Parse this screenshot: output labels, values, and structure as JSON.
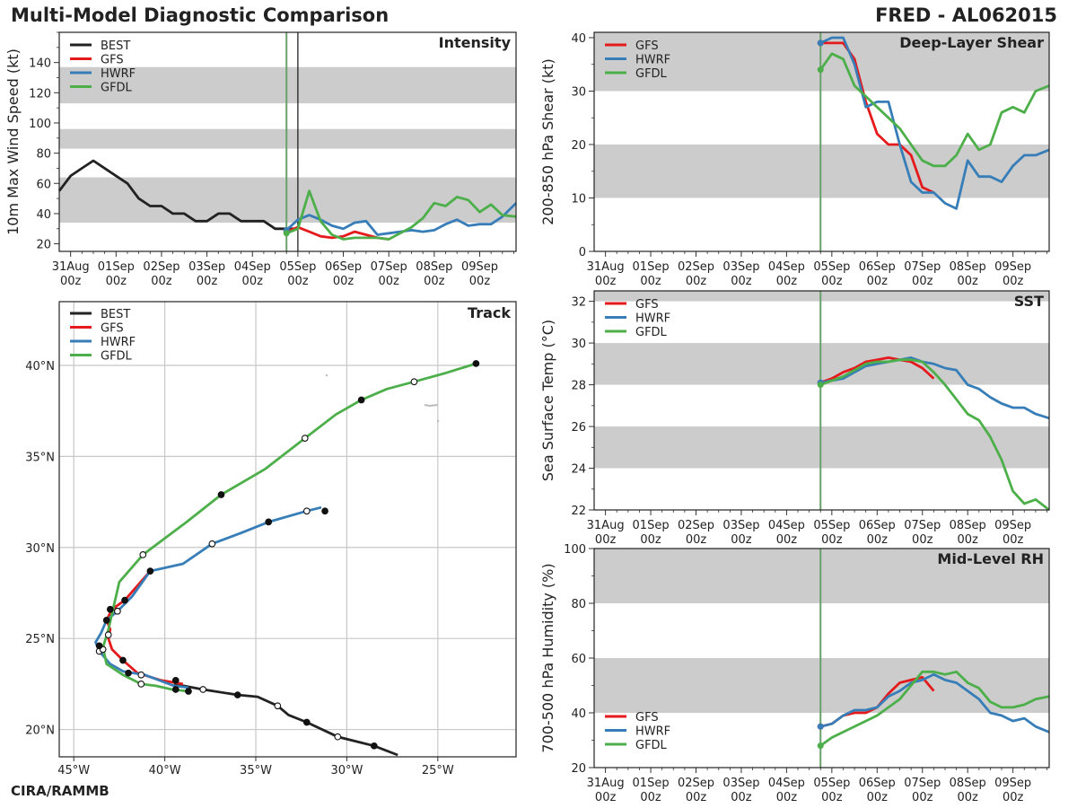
{
  "header": {
    "title": "Multi-Model Diagnostic Comparison",
    "storm": "FRED - AL062015",
    "credit": "CIRA/RAMMB"
  },
  "colors": {
    "BEST": "#222222",
    "GFS": "#e41a1c",
    "HWRF": "#377eb8",
    "GFDL": "#4daf4a",
    "band": "#cccccc",
    "grid": "#c8c8c8",
    "init": "#6aa06a"
  },
  "time_axis": {
    "tick_days": [
      0,
      1,
      2,
      3,
      4,
      5,
      6,
      7,
      8,
      9
    ],
    "tick_labels_top": [
      "31Aug",
      "01Sep",
      "02Sep",
      "03Sep",
      "04Sep",
      "05Sep",
      "06Sep",
      "07Sep",
      "08Sep",
      "09Sep"
    ],
    "tick_labels_bottom": [
      "00z",
      "00z",
      "00z",
      "00z",
      "00z",
      "00z",
      "00z",
      "00z",
      "00z",
      "00z"
    ],
    "init_day": 4.75,
    "now_day": 5.0,
    "xlim": [
      -0.25,
      9.8
    ]
  },
  "chart_data": [
    {
      "id": "intensity",
      "type": "line",
      "title": "Intensity",
      "xlabel": "",
      "ylabel": "10m Max Wind Speed (kt)",
      "ylim": [
        15,
        160
      ],
      "yticks": [
        20,
        40,
        60,
        80,
        100,
        120,
        140
      ],
      "bands": [
        [
          34,
          64
        ],
        [
          83,
          96
        ],
        [
          113,
          137
        ]
      ],
      "legend": [
        "BEST",
        "GFS",
        "HWRF",
        "GFDL"
      ],
      "series": [
        {
          "name": "BEST",
          "x": [
            -0.25,
            0.0,
            0.25,
            0.5,
            0.75,
            1.0,
            1.25,
            1.5,
            1.75,
            2.0,
            2.25,
            2.5,
            2.75,
            3.0,
            3.25,
            3.5,
            3.75,
            4.0,
            4.25,
            4.5,
            4.75,
            5.0
          ],
          "y": [
            55,
            65,
            70,
            75,
            70,
            65,
            60,
            50,
            45,
            45,
            40,
            40,
            35,
            35,
            40,
            40,
            35,
            35,
            35,
            30,
            30,
            30
          ]
        },
        {
          "name": "GFS",
          "x": [
            4.75,
            5.0,
            5.25,
            5.5,
            5.75,
            6.0,
            6.25,
            6.5,
            6.75,
            7.0
          ],
          "y": [
            28,
            31,
            28,
            25,
            24,
            25,
            28,
            26,
            24,
            23
          ]
        },
        {
          "name": "HWRF",
          "x": [
            4.75,
            5.0,
            5.25,
            5.5,
            5.75,
            6.0,
            6.25,
            6.5,
            6.75,
            7.0,
            7.25,
            7.5,
            7.75,
            8.0,
            8.25,
            8.5,
            8.75,
            9.0,
            9.25,
            9.5,
            9.8
          ],
          "y": [
            29,
            36,
            39,
            36,
            32,
            30,
            34,
            35,
            26,
            27,
            28,
            29,
            28,
            29,
            33,
            36,
            32,
            33,
            33,
            38,
            47
          ]
        },
        {
          "name": "GFDL",
          "x": [
            4.75,
            5.0,
            5.25,
            5.5,
            5.75,
            6.0,
            6.25,
            6.5,
            6.75,
            7.0,
            7.25,
            7.5,
            7.75,
            8.0,
            8.25,
            8.5,
            8.75,
            9.0,
            9.25,
            9.5,
            9.8
          ],
          "y": [
            27,
            30,
            55,
            35,
            26,
            23,
            24,
            24,
            24,
            23,
            27,
            31,
            37,
            47,
            45,
            51,
            49,
            41,
            46,
            39,
            38
          ]
        }
      ]
    },
    {
      "id": "shear",
      "type": "line",
      "title": "Deep-Layer Shear",
      "xlabel": "",
      "ylabel": "200-850 hPa Shear (kt)",
      "ylim": [
        0,
        41
      ],
      "yticks": [
        0,
        10,
        20,
        30,
        40
      ],
      "bands": [
        [
          10,
          20
        ],
        [
          30,
          41
        ]
      ],
      "legend": [
        "GFS",
        "HWRF",
        "GFDL"
      ],
      "series": [
        {
          "name": "GFS",
          "x": [
            4.75,
            5.0,
            5.25,
            5.5,
            5.75,
            6.0,
            6.25,
            6.5,
            6.75,
            7.0,
            7.25
          ],
          "y": [
            39,
            39,
            39,
            36,
            28,
            22,
            20,
            20,
            18,
            12,
            11
          ]
        },
        {
          "name": "HWRF",
          "x": [
            4.75,
            5.0,
            5.25,
            5.5,
            5.75,
            6.0,
            6.25,
            6.5,
            6.75,
            7.0,
            7.25,
            7.5,
            7.75,
            8.0,
            8.25,
            8.5,
            8.75,
            9.0,
            9.25,
            9.5,
            9.8
          ],
          "y": [
            39,
            40,
            40,
            35,
            27,
            28,
            28,
            20,
            13,
            11,
            11,
            9,
            8,
            17,
            14,
            14,
            13,
            16,
            18,
            18,
            19
          ]
        },
        {
          "name": "GFDL",
          "x": [
            4.75,
            5.0,
            5.25,
            5.5,
            5.75,
            6.0,
            6.25,
            6.5,
            6.75,
            7.0,
            7.25,
            7.5,
            7.75,
            8.0,
            8.25,
            8.5,
            8.75,
            9.0,
            9.25,
            9.5,
            9.8
          ],
          "y": [
            34,
            37,
            36,
            31,
            29,
            27,
            25,
            23,
            20,
            17,
            16,
            16,
            18,
            22,
            19,
            20,
            26,
            27,
            26,
            30,
            31
          ]
        }
      ]
    },
    {
      "id": "sst",
      "type": "line",
      "title": "SST",
      "xlabel": "",
      "ylabel": "Sea Surface Temp (°C)",
      "ylim": [
        22,
        32.5
      ],
      "yticks": [
        22,
        24,
        26,
        28,
        30,
        32
      ],
      "bands": [
        [
          24,
          26
        ],
        [
          28,
          30
        ],
        [
          32,
          32.5
        ]
      ],
      "legend": [
        "GFS",
        "HWRF",
        "GFDL"
      ],
      "series": [
        {
          "name": "GFS",
          "x": [
            4.75,
            5.0,
            5.25,
            5.5,
            5.75,
            6.0,
            6.25,
            6.5,
            6.75,
            7.0,
            7.25
          ],
          "y": [
            28.1,
            28.3,
            28.6,
            28.8,
            29.1,
            29.2,
            29.3,
            29.2,
            29.1,
            28.8,
            28.3
          ]
        },
        {
          "name": "HWRF",
          "x": [
            4.75,
            5.0,
            5.25,
            5.5,
            5.75,
            6.0,
            6.25,
            6.5,
            6.75,
            7.0,
            7.25,
            7.5,
            7.75,
            8.0,
            8.25,
            8.5,
            8.75,
            9.0,
            9.25,
            9.5,
            9.8
          ],
          "y": [
            28.1,
            28.2,
            28.3,
            28.6,
            28.9,
            29.0,
            29.1,
            29.2,
            29.3,
            29.1,
            29.0,
            28.8,
            28.7,
            28.0,
            27.8,
            27.4,
            27.1,
            26.9,
            26.9,
            26.6,
            26.4
          ]
        },
        {
          "name": "GFDL",
          "x": [
            4.75,
            5.0,
            5.25,
            5.5,
            5.75,
            6.0,
            6.25,
            6.5,
            6.75,
            7.0,
            7.25,
            7.5,
            7.75,
            8.0,
            8.25,
            8.5,
            8.75,
            9.0,
            9.25,
            9.5,
            9.8
          ],
          "y": [
            28.0,
            28.2,
            28.4,
            28.7,
            29.0,
            29.1,
            29.1,
            29.2,
            29.2,
            29.1,
            28.6,
            28.0,
            27.3,
            26.6,
            26.3,
            25.5,
            24.4,
            22.9,
            22.3,
            22.5,
            22.0
          ]
        }
      ]
    },
    {
      "id": "rh",
      "type": "line",
      "title": "Mid-Level RH",
      "xlabel": "",
      "ylabel": "700-500 hPa Humidity (%)",
      "ylim": [
        20,
        100
      ],
      "yticks": [
        20,
        40,
        60,
        80,
        100
      ],
      "bands": [
        [
          40,
          60
        ],
        [
          80,
          100
        ]
      ],
      "legend": [
        "GFS",
        "HWRF",
        "GFDL"
      ],
      "series": [
        {
          "name": "GFS",
          "x": [
            4.75,
            5.0,
            5.25,
            5.5,
            5.75,
            6.0,
            6.25,
            6.5,
            6.75,
            7.0,
            7.25
          ],
          "y": [
            35,
            36,
            39,
            40,
            40,
            42,
            47,
            51,
            52,
            53,
            48
          ]
        },
        {
          "name": "HWRF",
          "x": [
            4.75,
            5.0,
            5.25,
            5.5,
            5.75,
            6.0,
            6.25,
            6.5,
            6.75,
            7.0,
            7.25,
            7.5,
            7.75,
            8.0,
            8.25,
            8.5,
            8.75,
            9.0,
            9.25,
            9.5,
            9.8
          ],
          "y": [
            35,
            36,
            39,
            41,
            41,
            42,
            46,
            48,
            51,
            52,
            54,
            52,
            51,
            48,
            45,
            40,
            39,
            37,
            38,
            35,
            33
          ]
        },
        {
          "name": "GFDL",
          "x": [
            4.75,
            5.0,
            5.25,
            5.5,
            5.75,
            6.0,
            6.25,
            6.5,
            6.75,
            7.0,
            7.25,
            7.5,
            7.75,
            8.0,
            8.25,
            8.5,
            8.75,
            9.0,
            9.25,
            9.5,
            9.8
          ],
          "y": [
            28,
            31,
            33,
            35,
            37,
            39,
            42,
            45,
            50,
            55,
            55,
            54,
            55,
            51,
            49,
            44,
            42,
            42,
            43,
            45,
            46
          ]
        }
      ]
    },
    {
      "id": "track",
      "type": "scatter",
      "title": "Track",
      "xlabel": "",
      "ylabel": "",
      "xlim": [
        -45.8,
        -20.7
      ],
      "ylim": [
        18.5,
        43.5
      ],
      "xticks": [
        -45,
        -40,
        -35,
        -30,
        -25
      ],
      "xtick_labels": [
        "45°W",
        "40°W",
        "35°W",
        "30°W",
        "25°W"
      ],
      "yticks": [
        20,
        25,
        30,
        35,
        40
      ],
      "ytick_labels": [
        "20°N",
        "25°N",
        "30°N",
        "35°N",
        "40°N"
      ],
      "legend": [
        "BEST",
        "GFS",
        "HWRF",
        "GFDL"
      ],
      "series": [
        {
          "name": "BEST",
          "lon": [
            -27.2,
            -28.5,
            -30.5,
            -32.2,
            -33.2,
            -33.8,
            -34.9,
            -36.0,
            -37.9,
            -39.5
          ],
          "lat": [
            18.6,
            19.1,
            19.6,
            20.4,
            20.8,
            21.3,
            21.8,
            21.9,
            22.2,
            22.5
          ],
          "markers": [
            {
              "lon": -28.5,
              "lat": 19.1,
              "filled": true
            },
            {
              "lon": -30.5,
              "lat": 19.6,
              "filled": false
            },
            {
              "lon": -32.2,
              "lat": 20.4,
              "filled": true
            },
            {
              "lon": -33.8,
              "lat": 21.3,
              "filled": false
            },
            {
              "lon": -36.0,
              "lat": 21.9,
              "filled": true
            },
            {
              "lon": -37.9,
              "lat": 22.2,
              "filled": false
            }
          ]
        },
        {
          "name": "GFS",
          "lon": [
            -39.0,
            -40.2,
            -41.5,
            -42.3,
            -42.9,
            -43.1,
            -43.0,
            -43.2,
            -42.9,
            -42.2,
            -40.8
          ],
          "lat": [
            22.5,
            22.7,
            23.1,
            23.8,
            24.4,
            25.0,
            25.5,
            26.0,
            26.6,
            27.1,
            28.7
          ],
          "markers": [
            {
              "lon": -42.3,
              "lat": 23.8,
              "filled": true
            },
            {
              "lon": -43.2,
              "lat": 26.0,
              "filled": true
            },
            {
              "lon": -42.2,
              "lat": 27.1,
              "filled": true
            },
            {
              "lon": -40.8,
              "lat": 28.7,
              "filled": true
            }
          ]
        },
        {
          "name": "HWRF",
          "lon": [
            -38.7,
            -39.5,
            -41.1,
            -42.3,
            -43.0,
            -43.6,
            -43.8,
            -43.5,
            -43.2,
            -42.6,
            -41.8,
            -40.8,
            -39.0,
            -37.4,
            -35.8,
            -34.3,
            -32.2,
            -31.4
          ],
          "lat": [
            22.3,
            22.4,
            23.0,
            23.2,
            23.6,
            24.3,
            24.8,
            25.3,
            26.0,
            26.5,
            27.3,
            28.7,
            29.1,
            30.2,
            30.8,
            31.4,
            32.0,
            32.2
          ],
          "markers": [
            {
              "lon": -41.3,
              "lat": 23.0,
              "filled": false
            },
            {
              "lon": -43.6,
              "lat": 24.3,
              "filled": false
            },
            {
              "lon": -42.6,
              "lat": 26.5,
              "filled": false
            },
            {
              "lon": -37.4,
              "lat": 30.2,
              "filled": false
            },
            {
              "lon": -34.3,
              "lat": 31.4,
              "filled": true
            },
            {
              "lon": -32.2,
              "lat": 32.0,
              "filled": false
            },
            {
              "lon": -31.2,
              "lat": 32.0,
              "filled": true
            }
          ]
        },
        {
          "name": "GFDL",
          "lon": [
            -38.7,
            -39.6,
            -40.5,
            -41.3,
            -42.3,
            -43.2,
            -43.4,
            -43.1,
            -42.5,
            -41.2,
            -40.0,
            -38.8,
            -36.9,
            -34.5,
            -32.3,
            -30.6,
            -29.2,
            -27.8,
            -26.3,
            -24.5,
            -22.9
          ],
          "lat": [
            22.1,
            22.2,
            22.4,
            22.5,
            23.0,
            23.6,
            24.5,
            25.5,
            28.1,
            29.6,
            30.5,
            31.4,
            32.9,
            34.3,
            36.0,
            37.3,
            38.1,
            38.7,
            39.1,
            39.6,
            40.1
          ],
          "markers": [
            {
              "lon": -38.7,
              "lat": 22.1,
              "filled": true
            },
            {
              "lon": -41.3,
              "lat": 22.5,
              "filled": false
            },
            {
              "lon": -43.1,
              "lat": 25.2,
              "filled": false
            },
            {
              "lon": -41.2,
              "lat": 29.6,
              "filled": false
            },
            {
              "lon": -36.9,
              "lat": 32.9,
              "filled": true
            },
            {
              "lon": -32.3,
              "lat": 36.0,
              "filled": false
            },
            {
              "lon": -29.2,
              "lat": 38.1,
              "filled": true
            },
            {
              "lon": -26.3,
              "lat": 39.1,
              "filled": false
            },
            {
              "lon": -22.9,
              "lat": 40.1,
              "filled": true
            }
          ]
        }
      ],
      "extra_markers": [
        {
          "lon": -42.0,
          "lat": 23.1,
          "filled": true
        },
        {
          "lon": -43.0,
          "lat": 26.6,
          "filled": true
        },
        {
          "lon": -43.4,
          "lat": 24.4,
          "filled": false
        },
        {
          "lon": -42.6,
          "lat": 26.5,
          "filled": false
        },
        {
          "lon": -39.4,
          "lat": 22.7,
          "filled": true
        },
        {
          "lon": -39.4,
          "lat": 22.2,
          "filled": true
        },
        {
          "lon": -43.6,
          "lat": 24.6,
          "filled": true
        }
      ]
    }
  ]
}
